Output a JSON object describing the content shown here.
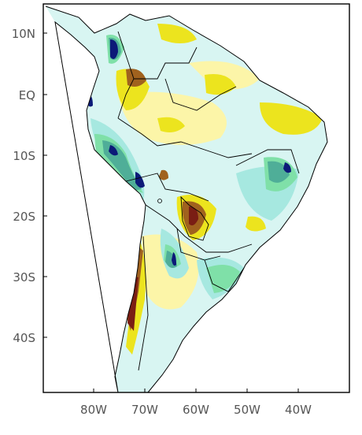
{
  "map": {
    "lat_labels": [
      "10N",
      "EQ",
      "10S",
      "20S",
      "30S",
      "40S"
    ],
    "lon_labels": [
      "80W",
      "70W",
      "60W",
      "50W",
      "40W"
    ],
    "lat_values": [
      10,
      0,
      -10,
      -20,
      -30,
      -40
    ],
    "lon_values": [
      -80,
      -70,
      -60,
      -50,
      -40
    ],
    "extent": {
      "lon_min": -90,
      "lon_max": -30,
      "lat_min": -50,
      "lat_max": 13
    },
    "palette": {
      "dark_brown": "#7a1e14",
      "brown": "#a0621e",
      "yellow": "#ece41e",
      "pale_yellow": "#fcf5a8",
      "white": "#ffffff",
      "pale_cyan": "#d8f5f2",
      "light_cyan": "#a6e8e0",
      "light_green": "#7fe0a8",
      "teal": "#4fae98",
      "navy": "#0c1a78"
    }
  }
}
